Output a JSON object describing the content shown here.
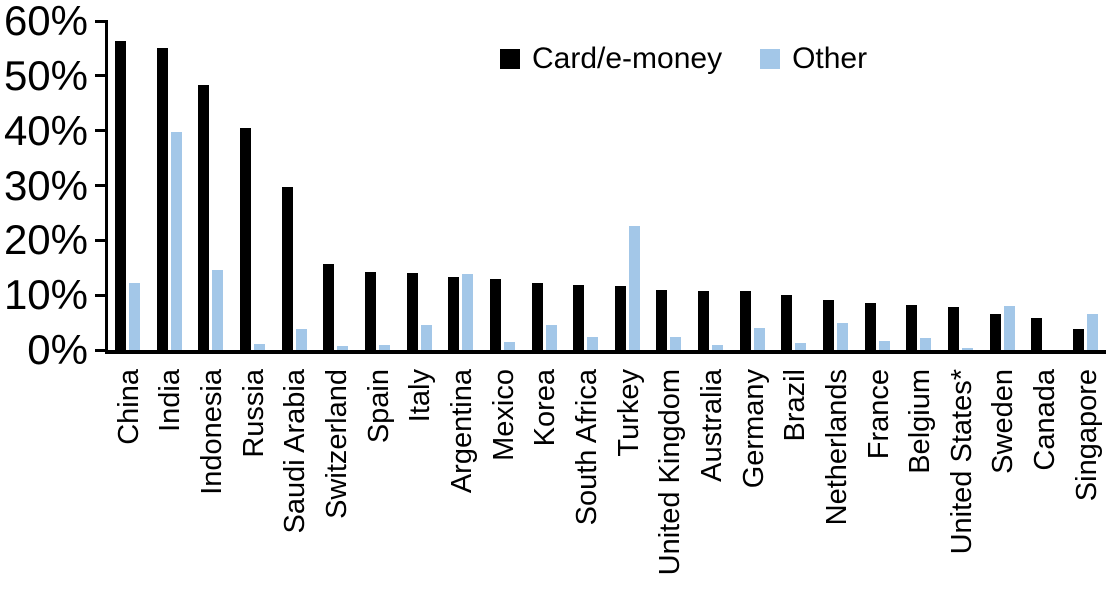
{
  "chart_data": {
    "type": "bar",
    "title": "",
    "xlabel": "",
    "ylabel": "",
    "ylim": [
      0,
      60
    ],
    "ytick_step": 10,
    "ytick_labels": [
      "0%",
      "10%",
      "20%",
      "30%",
      "40%",
      "50%",
      "60%"
    ],
    "grid": false,
    "legend_position": "top-center",
    "categories": [
      "China",
      "India",
      "Indonesia",
      "Russia",
      "Saudi Arabia",
      "Switzerland",
      "Spain",
      "Italy",
      "Argentina",
      "Mexico",
      "Korea",
      "South Africa",
      "Turkey",
      "United Kingdom",
      "Australia",
      "Germany",
      "Brazil",
      "Netherlands",
      "France",
      "Belgium",
      "United States*",
      "Sweden",
      "Canada",
      "Singapore"
    ],
    "series": [
      {
        "name": "Card/e-money",
        "color": "#000000",
        "values": [
          56.3,
          55.0,
          48.3,
          40.5,
          29.8,
          15.6,
          14.3,
          14.1,
          13.4,
          12.9,
          12.3,
          11.9,
          11.6,
          11.0,
          10.8,
          10.7,
          10.0,
          9.2,
          8.6,
          8.2,
          7.8,
          6.5,
          5.9,
          3.8
        ]
      },
      {
        "name": "Other",
        "color": "#a3c7e8",
        "values": [
          12.3,
          39.7,
          14.6,
          1.1,
          3.9,
          0.8,
          1.0,
          4.6,
          13.8,
          1.4,
          4.6,
          2.4,
          22.7,
          2.4,
          1.0,
          4.0,
          1.2,
          5.0,
          1.6,
          2.1,
          0.3,
          8.1,
          0.0,
          6.6
        ]
      }
    ]
  }
}
